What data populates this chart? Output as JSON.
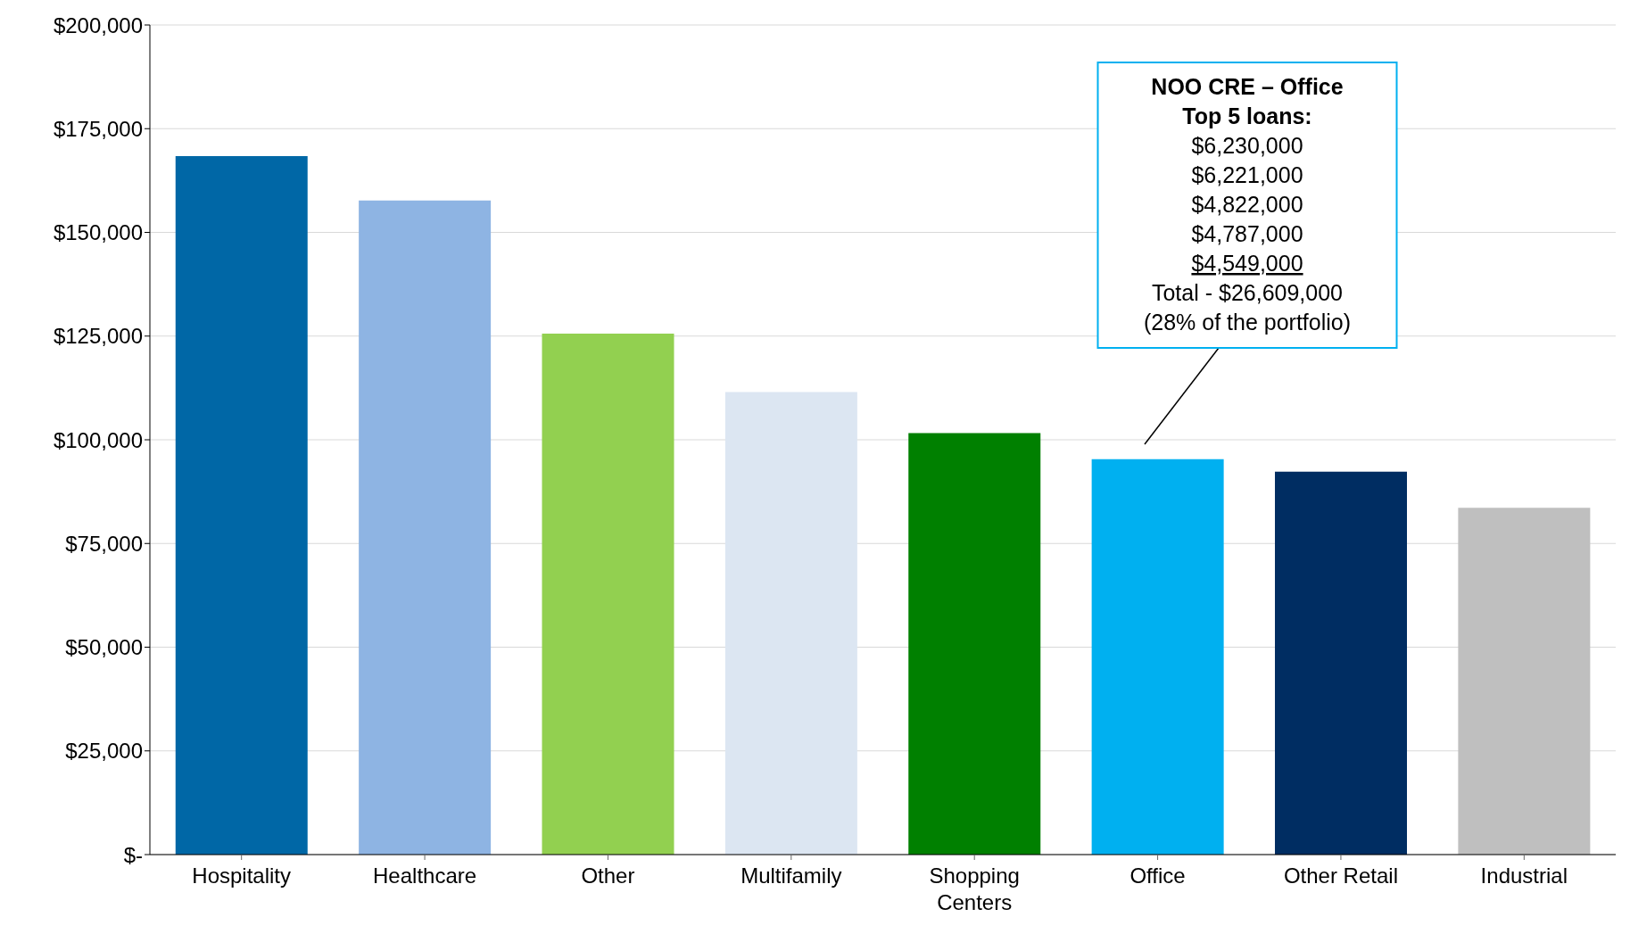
{
  "chart_data": {
    "type": "bar",
    "categories": [
      "Hospitality",
      "Healthcare",
      "Other",
      "Multifamily",
      "Shopping Centers",
      "Office",
      "Other Retail",
      "Industrial"
    ],
    "values": [
      168400,
      157700,
      125600,
      111500,
      101600,
      95300,
      92300,
      83600
    ],
    "colors": [
      "#0067a6",
      "#8eb4e3",
      "#92d050",
      "#dce6f2",
      "#008000",
      "#00b0f0",
      "#002d62",
      "#bfbfbf"
    ],
    "ylim": [
      0,
      200000
    ],
    "yticks": [
      {
        "value": 0,
        "label": "$-"
      },
      {
        "value": 25000,
        "label": "$25,000"
      },
      {
        "value": 50000,
        "label": "$50,000"
      },
      {
        "value": 75000,
        "label": "$75,000"
      },
      {
        "value": 100000,
        "label": "$100,000"
      },
      {
        "value": 125000,
        "label": "$125,000"
      },
      {
        "value": 150000,
        "label": "$150,000"
      },
      {
        "value": 175000,
        "label": "$175,000"
      },
      {
        "value": 200000,
        "label": "$200,000"
      }
    ],
    "grid": "y",
    "annotations": [
      "NOO CRE – Office",
      "Top 5 loans:",
      "$6,230,000",
      "$6,221,000",
      "$4,822,000",
      "$4,787,000",
      "$4,549,000",
      "Total - $26,609,000",
      "(28% of the portfolio)"
    ]
  }
}
